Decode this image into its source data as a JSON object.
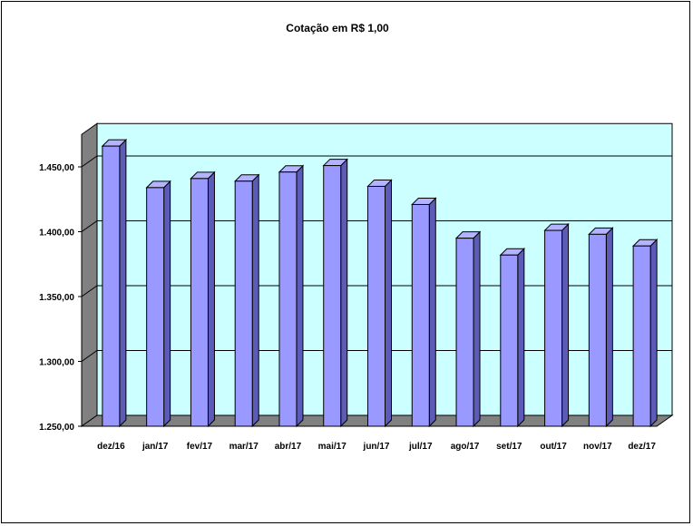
{
  "chart_data": {
    "type": "bar",
    "title": "Cotação em R$ 1,00",
    "categories": [
      "dez/16",
      "jan/17",
      "fev/17",
      "mar/17",
      "abr/17",
      "mai/17",
      "jun/17",
      "jul/17",
      "ago/17",
      "set/17",
      "out/17",
      "nov/17",
      "dez/17"
    ],
    "values": [
      1466,
      1434,
      1441,
      1439,
      1446,
      1451,
      1435,
      1421,
      1395,
      1382,
      1401,
      1398,
      1389
    ],
    "ylim": [
      1250,
      1475
    ],
    "yticks": [
      1250,
      1300,
      1350,
      1400,
      1450
    ],
    "ytick_labels": [
      "1.250,00",
      "1.300,00",
      "1.350,00",
      "1.400,00",
      "1.450,00"
    ],
    "xlabel": "",
    "ylabel": "",
    "grid": true,
    "colors": {
      "plot_background": "#ccffff",
      "wall_side": "#808080",
      "floor": "#808080",
      "bar_front": "#9999ff",
      "bar_side": "#5c5cb8",
      "bar_top": "#b3b3ff",
      "gridline": "#000000"
    }
  }
}
